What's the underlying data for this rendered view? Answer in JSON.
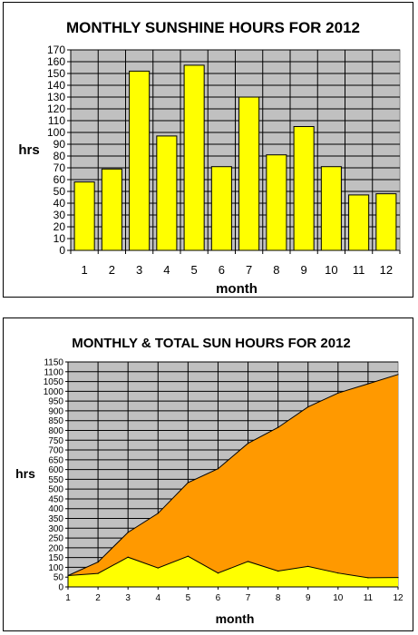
{
  "chart_data": [
    {
      "type": "bar",
      "title": "MONTHLY SUNSHINE HOURS FOR 2012",
      "xlabel": "month",
      "ylabel": "hrs",
      "categories": [
        "1",
        "2",
        "3",
        "4",
        "5",
        "6",
        "7",
        "8",
        "9",
        "10",
        "11",
        "12"
      ],
      "values": [
        58,
        69,
        152,
        97,
        157,
        71,
        130,
        81,
        105,
        71,
        47,
        48
      ],
      "ylim": [
        0,
        170
      ],
      "ytick_step": 10,
      "grid": true,
      "colors": {
        "bar": "#ffff00",
        "plot_bg": "#c0c0c0",
        "edge": "#000000"
      }
    },
    {
      "type": "area",
      "title": "MONTHLY & TOTAL SUN HOURS FOR 2012",
      "xlabel": "month",
      "ylabel": "hrs",
      "x": [
        1,
        2,
        3,
        4,
        5,
        6,
        7,
        8,
        9,
        10,
        11,
        12
      ],
      "series": [
        {
          "values": [
            58,
            127,
            279,
            376,
            533,
            604,
            734,
            815,
            920,
            991,
            1038,
            1086
          ],
          "color": "#ff9900"
        },
        {
          "values": [
            58,
            69,
            152,
            97,
            157,
            71,
            130,
            81,
            105,
            71,
            47,
            48
          ],
          "color": "#ffff00"
        }
      ],
      "ylim": [
        0,
        1150
      ],
      "ytick_step": 50,
      "grid": true,
      "colors": {
        "plot_bg": "#c0c0c0",
        "edge": "#000000"
      }
    }
  ]
}
